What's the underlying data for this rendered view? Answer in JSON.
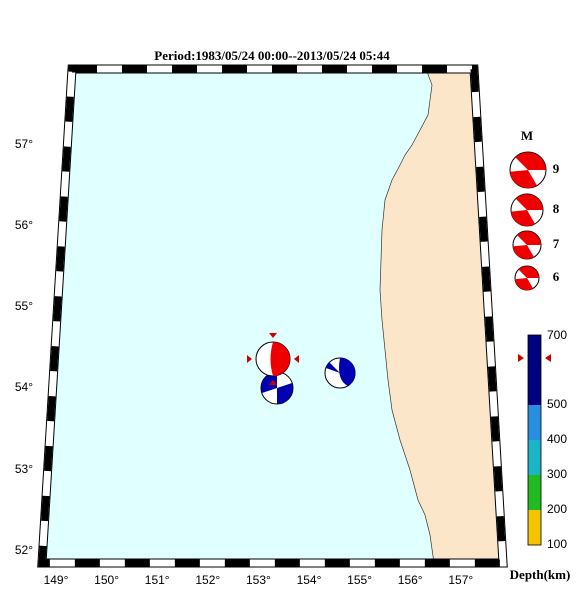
{
  "title": "Period:1983/05/24 00:00--2013/05/24 05:44",
  "lat_labels": [
    "57°",
    "56°",
    "55°",
    "54°",
    "53°",
    "52°"
  ],
  "lon_labels": [
    "149°",
    "150°",
    "151°",
    "152°",
    "153°",
    "154°",
    "155°",
    "156°",
    "157°"
  ],
  "magnitude_legend": {
    "title": "M",
    "labels": [
      "9",
      "8",
      "7",
      "6"
    ]
  },
  "depth_scale": {
    "labels": [
      "700",
      "500",
      "400",
      "300",
      "200",
      "100"
    ],
    "title": "Depth(km)"
  }
}
